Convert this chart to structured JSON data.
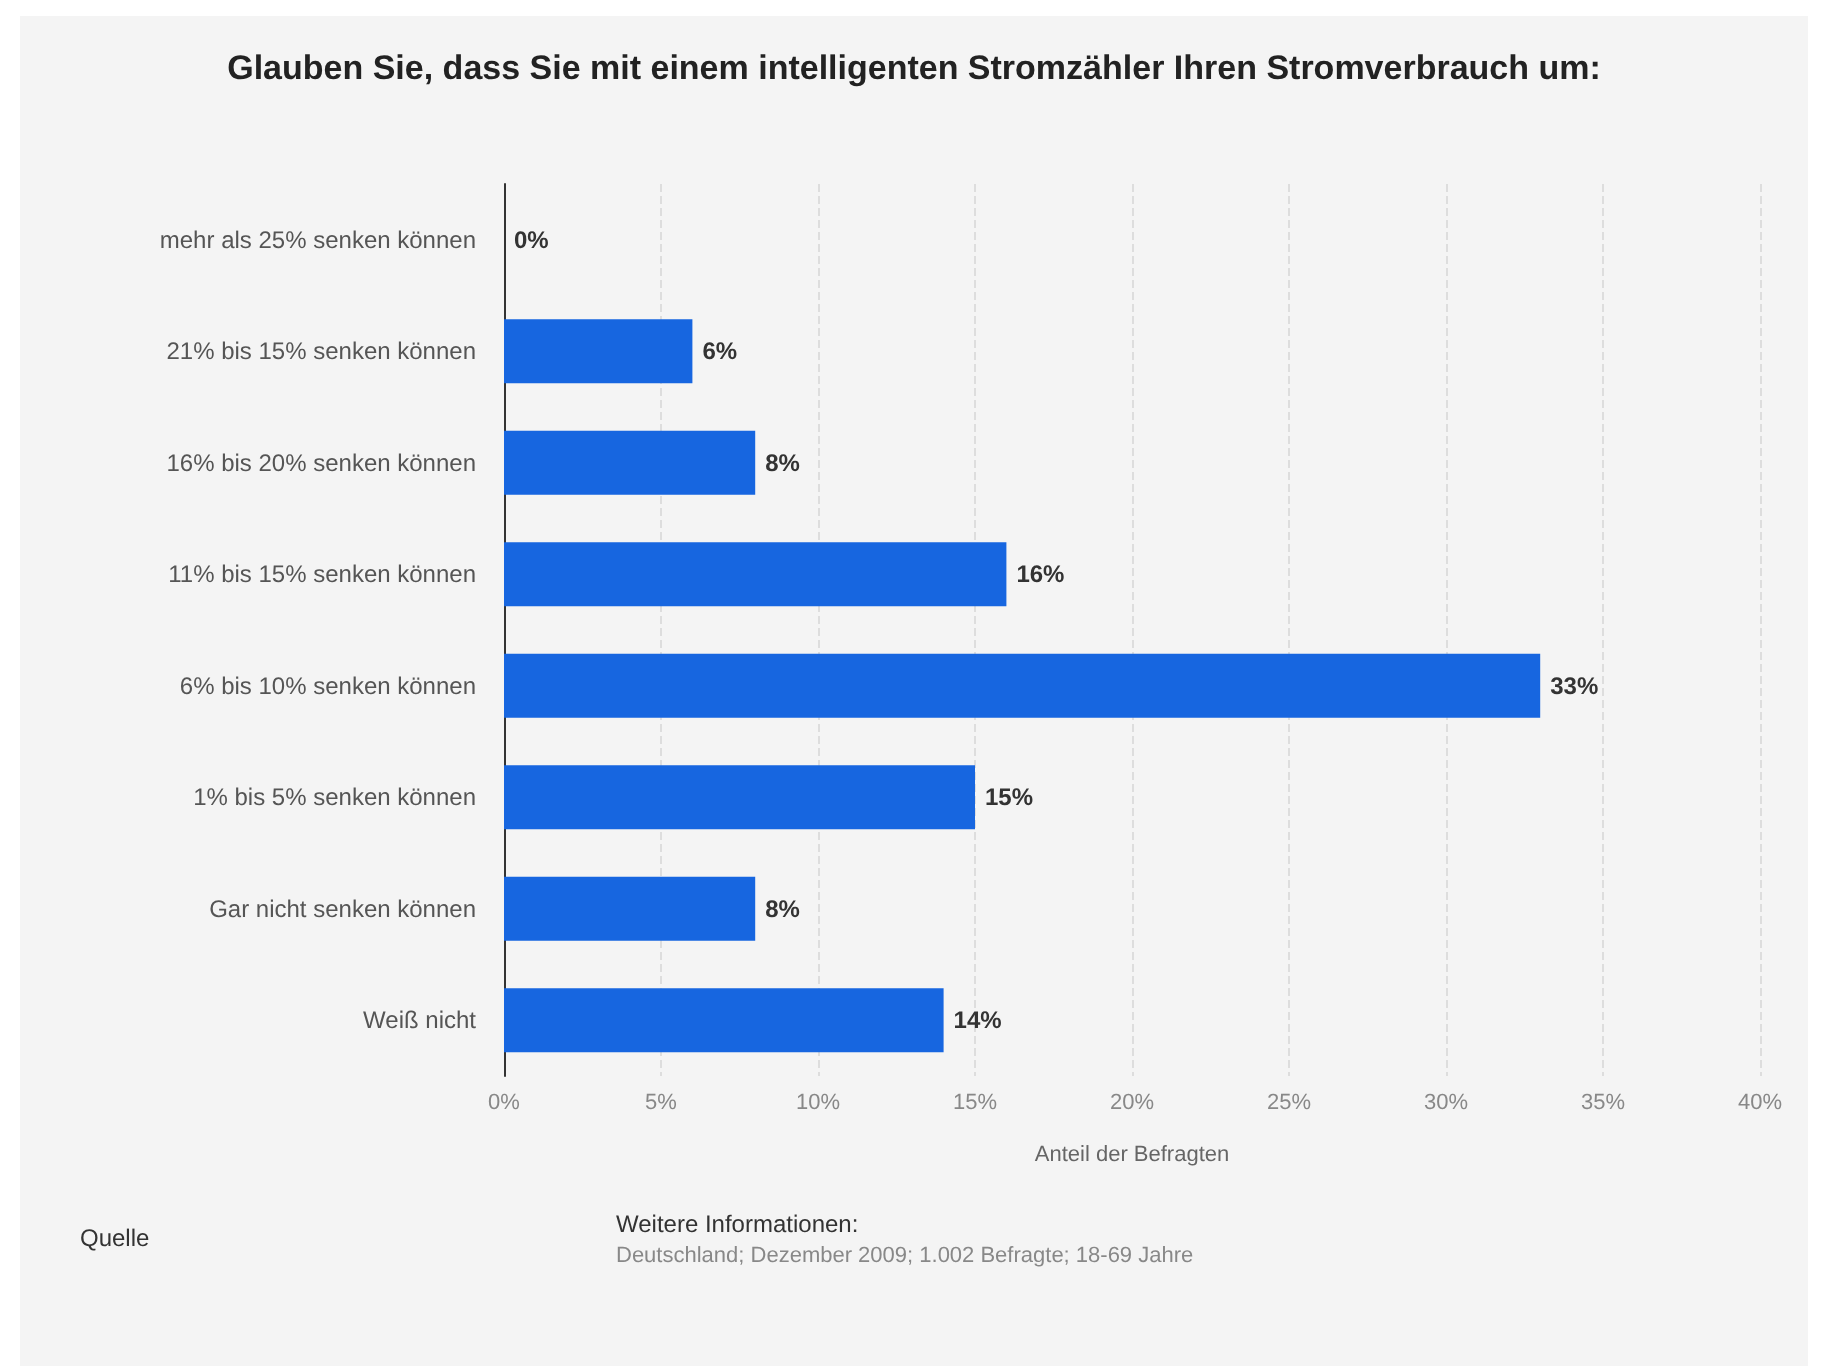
{
  "chart_data": {
    "type": "bar",
    "orientation": "horizontal",
    "title": "Glauben Sie, dass Sie mit einem intelligenten Stromzähler Ihren Stromverbrauch um:",
    "xlabel": "Anteil der Befragten",
    "categories": [
      "mehr als 25% senken können",
      "21% bis 15% senken können",
      "16% bis 20% senken können",
      "11% bis 15% senken können",
      "6% bis 10% senken können",
      "1% bis 5% senken können",
      "Gar nicht senken können",
      "Weiß nicht"
    ],
    "values": [
      0,
      6,
      8,
      16,
      33,
      15,
      8,
      14
    ],
    "value_labels": [
      "0%",
      "6%",
      "8%",
      "16%",
      "33%",
      "15%",
      "8%",
      "14%"
    ],
    "color": "#1766e0",
    "xlim": [
      0,
      40
    ],
    "xticks": [
      {
        "value": 0,
        "label": "0%"
      },
      {
        "value": 5,
        "label": "5%"
      },
      {
        "value": 10,
        "label": "10%"
      },
      {
        "value": 15,
        "label": "15%"
      },
      {
        "value": 20,
        "label": "20%"
      },
      {
        "value": 25,
        "label": "25%"
      },
      {
        "value": 30,
        "label": "30%"
      },
      {
        "value": 35,
        "label": "35%"
      },
      {
        "value": 40,
        "label": "40%"
      }
    ],
    "grid": "x",
    "annotations": [
      "Quelle",
      "Weitere Informationen:",
      "Deutschland; Dezember 2009; 1.002 Befragte; 18-69 Jahre"
    ]
  }
}
